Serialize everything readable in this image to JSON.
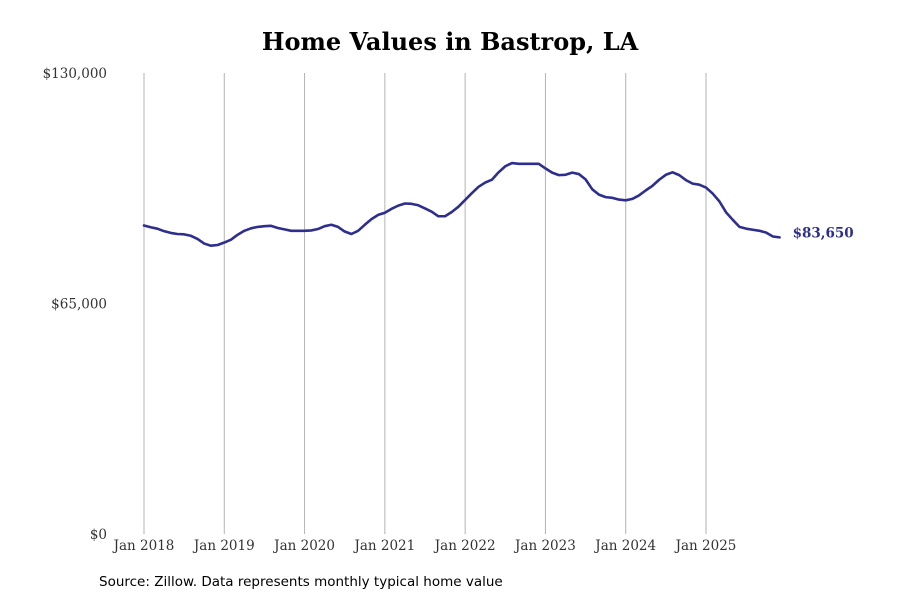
{
  "chart_data": {
    "type": "line",
    "title": "Home Values in Bastrop, LA",
    "xlabel": "",
    "ylabel": "",
    "ylim": [
      0,
      130000
    ],
    "y_ticks": [
      {
        "value": 0,
        "label": "$0"
      },
      {
        "value": 65000,
        "label": "$65,000"
      },
      {
        "value": 130000,
        "label": "$130,000"
      }
    ],
    "x_ticks": [
      {
        "value": "2018-01",
        "label": "Jan 2018"
      },
      {
        "value": "2019-01",
        "label": "Jan 2019"
      },
      {
        "value": "2020-01",
        "label": "Jan 2020"
      },
      {
        "value": "2021-01",
        "label": "Jan 2021"
      },
      {
        "value": "2022-01",
        "label": "Jan 2022"
      },
      {
        "value": "2023-01",
        "label": "Jan 2023"
      },
      {
        "value": "2024-01",
        "label": "Jan 2024"
      },
      {
        "value": "2025-01",
        "label": "Jan 2025"
      }
    ],
    "grid": "vertical",
    "line_color": "#2e2e8f",
    "grid_color": "#b3b3b3",
    "x": [
      "2018-01",
      "2018-02",
      "2018-03",
      "2018-04",
      "2018-05",
      "2018-06",
      "2018-07",
      "2018-08",
      "2018-09",
      "2018-10",
      "2018-11",
      "2018-12",
      "2019-01",
      "2019-02",
      "2019-03",
      "2019-04",
      "2019-05",
      "2019-06",
      "2019-07",
      "2019-08",
      "2019-09",
      "2019-10",
      "2019-11",
      "2019-12",
      "2020-01",
      "2020-02",
      "2020-03",
      "2020-04",
      "2020-05",
      "2020-06",
      "2020-07",
      "2020-08",
      "2020-09",
      "2020-10",
      "2020-11",
      "2020-12",
      "2021-01",
      "2021-02",
      "2021-03",
      "2021-04",
      "2021-05",
      "2021-06",
      "2021-07",
      "2021-08",
      "2021-09",
      "2021-10",
      "2021-11",
      "2021-12",
      "2022-01",
      "2022-02",
      "2022-03",
      "2022-04",
      "2022-05",
      "2022-06",
      "2022-07",
      "2022-08",
      "2022-09",
      "2022-10",
      "2022-11",
      "2022-12",
      "2023-01",
      "2023-02",
      "2023-03",
      "2023-04",
      "2023-05",
      "2023-06",
      "2023-07",
      "2023-08",
      "2023-09",
      "2023-10",
      "2023-11",
      "2023-12",
      "2024-01",
      "2024-02",
      "2024-03",
      "2024-04",
      "2024-05",
      "2024-06",
      "2024-07",
      "2024-08",
      "2024-09",
      "2024-10",
      "2024-11",
      "2024-12",
      "2025-01",
      "2025-02",
      "2025-03",
      "2025-04",
      "2025-05",
      "2025-06",
      "2025-07",
      "2025-08",
      "2025-09",
      "2025-10",
      "2025-11",
      "2025-12"
    ],
    "values": [
      87000,
      86500,
      86100,
      85400,
      84900,
      84600,
      84500,
      84100,
      83200,
      81900,
      81300,
      81500,
      82200,
      83000,
      84400,
      85500,
      86200,
      86600,
      86800,
      86900,
      86300,
      85900,
      85500,
      85500,
      85500,
      85600,
      86000,
      86800,
      87200,
      86600,
      85300,
      84600,
      85500,
      87200,
      88800,
      90000,
      90600,
      91700,
      92600,
      93200,
      93100,
      92700,
      91800,
      90900,
      89600,
      89600,
      90800,
      92300,
      94200,
      96100,
      97900,
      99100,
      99900,
      102000,
      103700,
      104600,
      104400,
      104400,
      104400,
      104400,
      103100,
      101900,
      101200,
      101300,
      101900,
      101500,
      100000,
      97200,
      95700,
      95000,
      94800,
      94300,
      94100,
      94500,
      95500,
      96900,
      98200,
      99900,
      101300,
      102000,
      101200,
      99800,
      98800,
      98500,
      97700,
      96000,
      93800,
      90700,
      88600,
      86600,
      86100,
      85800,
      85500,
      85000,
      83900,
      83650
    ],
    "end_label": "$83,650",
    "source": "Source: Zillow. Data represents monthly typical home value"
  }
}
